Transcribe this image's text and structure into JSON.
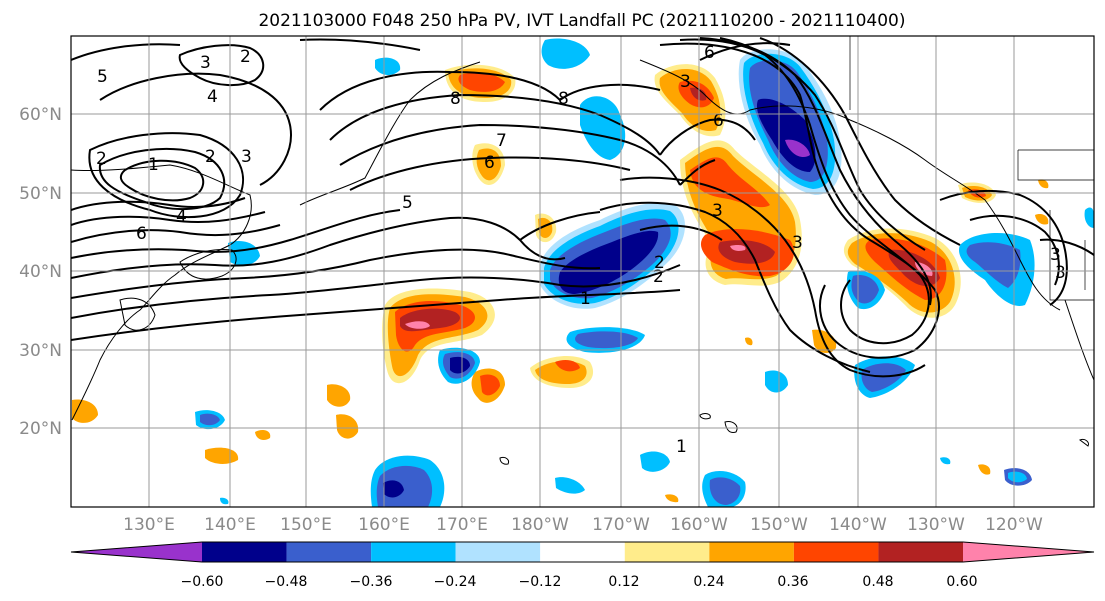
{
  "chart_data": {
    "type": "contour-map",
    "title": "2021103000 F048 250 hPa PV, IVT Landfall PC (2021110200 - 2021110400)",
    "lon_labels": [
      "130°E",
      "140°E",
      "150°E",
      "160°E",
      "170°E",
      "180°W",
      "170°W",
      "160°W",
      "150°W",
      "140°W",
      "130°W",
      "120°W"
    ],
    "lat_labels": [
      "60°N",
      "50°N",
      "40°N",
      "30°N",
      "20°N"
    ],
    "lon_range": [
      120,
      250
    ],
    "lat_range": [
      10,
      70
    ],
    "grid": true,
    "colorbar": {
      "ticks": [
        "−0.60",
        "−0.48",
        "−0.36",
        "−0.24",
        "−0.12",
        "0.12",
        "0.24",
        "0.36",
        "0.48",
        "0.60"
      ],
      "colors": [
        "#9932cc",
        "#00008b",
        "#3a5fcd",
        "#00bfff",
        "#b0e2ff",
        "#ffffff",
        "#ffec8b",
        "#ffa500",
        "#ff4500",
        "#b22222",
        "#ff82ab"
      ],
      "extend": "both"
    },
    "contour_labels": [
      "5",
      "2",
      "3",
      "4",
      "2",
      "1",
      "2",
      "3",
      "4",
      "6",
      "8",
      "8",
      "6",
      "7",
      "5",
      "6",
      "3",
      "2",
      "1",
      "2",
      "3",
      "6",
      "3",
      "3",
      "3",
      "1"
    ],
    "contour_levels_pv": [
      1,
      2,
      3,
      4,
      5,
      6,
      7,
      8
    ]
  }
}
